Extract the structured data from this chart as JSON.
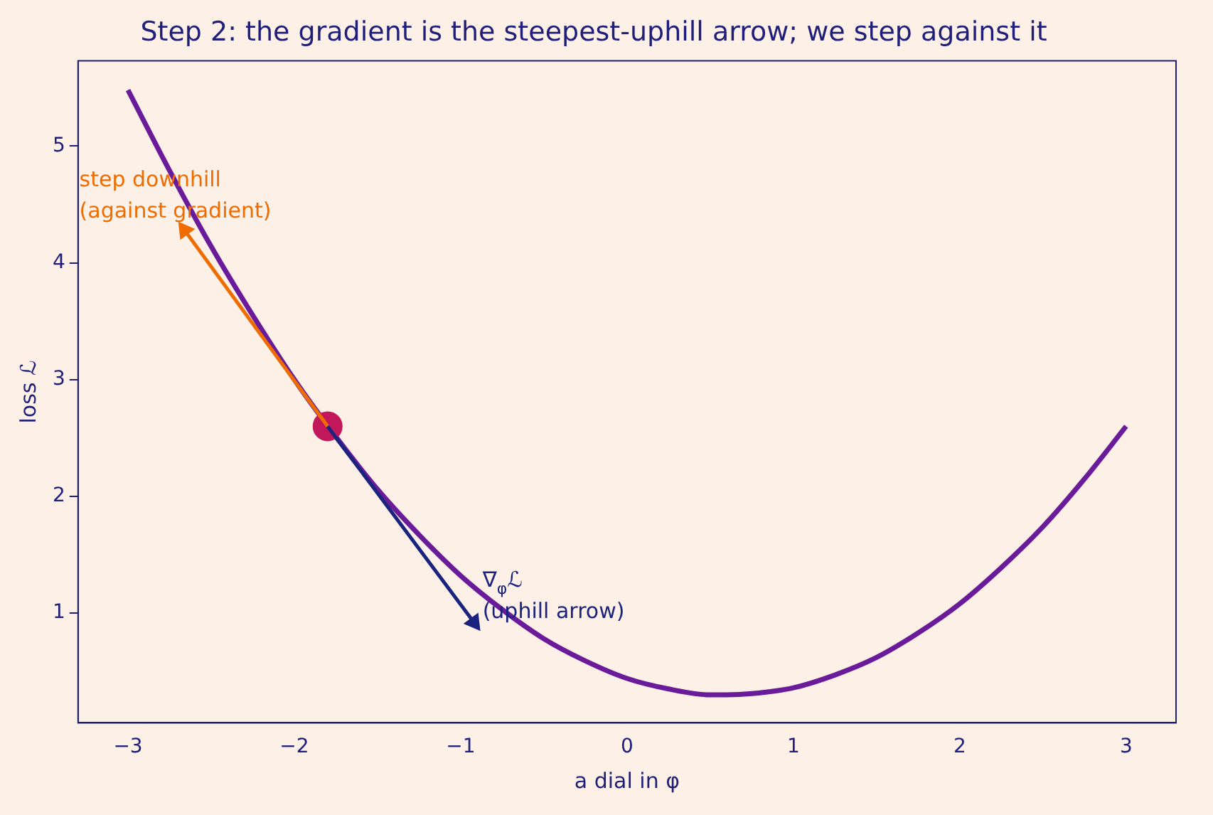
{
  "chart_data": {
    "type": "line",
    "title": "Step 2: the gradient is the steepest-uphill arrow; we step against it",
    "xlabel": "a dial in φ",
    "ylabel": "loss ℒ",
    "series": [
      {
        "color": "#6a1b9a",
        "x": [
          -3,
          -2.75,
          -2.5,
          -2.25,
          -2,
          -1.75,
          -1.5,
          -1.25,
          -1,
          -0.75,
          -0.5,
          -0.25,
          0,
          0.25,
          0.5,
          0.6,
          0.75,
          1,
          1.25,
          1.5,
          1.75,
          2,
          2.25,
          2.5,
          2.75,
          3
        ],
        "values": [
          5.48,
          4.79,
          4.14,
          3.55,
          3.0,
          2.51,
          2.06,
          1.67,
          1.32,
          1.03,
          0.78,
          0.59,
          0.44,
          0.35,
          0.3,
          0.3,
          0.31,
          0.36,
          0.47,
          0.62,
          0.83,
          1.08,
          1.39,
          1.74,
          2.15,
          2.6
        ]
      },
      {
        "type": "scatter",
        "color": "#c2185b",
        "x": [
          -1.8
        ],
        "values": [
          2.6
        ]
      },
      {
        "type": "line",
        "color": "#1a237e",
        "x": [
          -1.8,
          -0.92
        ],
        "values": [
          2.6,
          0.92
        ]
      },
      {
        "type": "line",
        "color": "#ef6c00",
        "x": [
          -1.8,
          -2.66
        ],
        "values": [
          2.6,
          4.28
        ]
      }
    ],
    "annotations": [
      "∇$_{φ}$ℒ\n(uphill arrow)",
      "step downhill\n(against gradient)"
    ],
    "xlim": [
      -3.3,
      3.3
    ],
    "xticks": [
      {
        "value": -3,
        "label": "−3"
      },
      {
        "value": -2,
        "label": "−2"
      },
      {
        "value": -1,
        "label": "−1"
      },
      0,
      1,
      2,
      3
    ],
    "ylim": [
      0.06,
      5.73
    ],
    "yticks": [
      1,
      2,
      3,
      4,
      5
    ],
    "grid": false,
    "legend": false,
    "line_style": "solid"
  }
}
